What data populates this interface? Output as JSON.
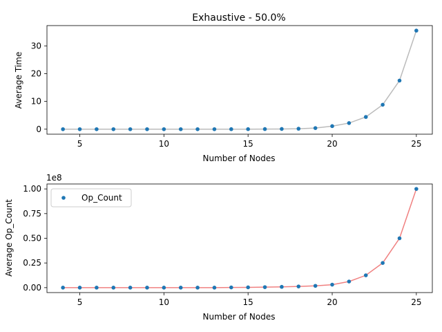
{
  "chart_data": [
    {
      "type": "scatter",
      "title": "Exhaustive - 50.0%",
      "xlabel": "Number of Nodes",
      "ylabel": "Average Time",
      "x": [
        4,
        5,
        6,
        7,
        8,
        9,
        10,
        11,
        12,
        13,
        14,
        15,
        16,
        17,
        18,
        19,
        20,
        21,
        22,
        23,
        24,
        25
      ],
      "series": [
        {
          "values": [
            0.0,
            0.0,
            0.0,
            0.0,
            0.0,
            0.0,
            0.0,
            0.0,
            0.0,
            0.0,
            0.01,
            0.02,
            0.04,
            0.08,
            0.17,
            0.4,
            1.1,
            2.2,
            4.4,
            8.8,
            17.5,
            35.5
          ],
          "marker_color": "#1f77b4",
          "line_color": "#bbbbbb"
        }
      ],
      "xlim": [
        3.05,
        25.95
      ],
      "ylim": [
        -1.8,
        37.3
      ],
      "xticks": [
        5,
        10,
        15,
        20,
        25
      ],
      "yticks": [
        0,
        10,
        20,
        30
      ],
      "grid": false,
      "legend": null
    },
    {
      "type": "scatter",
      "title": "",
      "xlabel": "Number of Nodes",
      "ylabel": "Average Op_Count",
      "offset_label": "1e8",
      "x": [
        4,
        5,
        6,
        7,
        8,
        9,
        10,
        11,
        12,
        13,
        14,
        15,
        16,
        17,
        18,
        19,
        20,
        21,
        22,
        23,
        24,
        25
      ],
      "series": [
        {
          "name": "Op_Count",
          "values": [
            0.0,
            0.0,
            0.0,
            0.0,
            0.0,
            0.0,
            0.0,
            0.0,
            0.0,
            0.0,
            0.002,
            0.003,
            0.005,
            0.008,
            0.012,
            0.018,
            0.03,
            0.062,
            0.125,
            0.25,
            0.5,
            1.0
          ],
          "marker_color": "#1f77b4",
          "line_color": "#f08080"
        }
      ],
      "xlim": [
        3.05,
        25.95
      ],
      "ylim": [
        -0.05,
        1.05
      ],
      "xticks": [
        5,
        10,
        15,
        20,
        25
      ],
      "yticks": [
        0.0,
        0.25,
        0.5,
        0.75,
        1.0
      ],
      "ytick_labels": [
        "0.00",
        "0.25",
        "0.50",
        "0.75",
        "1.00"
      ],
      "grid": false,
      "legend": "upper left"
    }
  ]
}
